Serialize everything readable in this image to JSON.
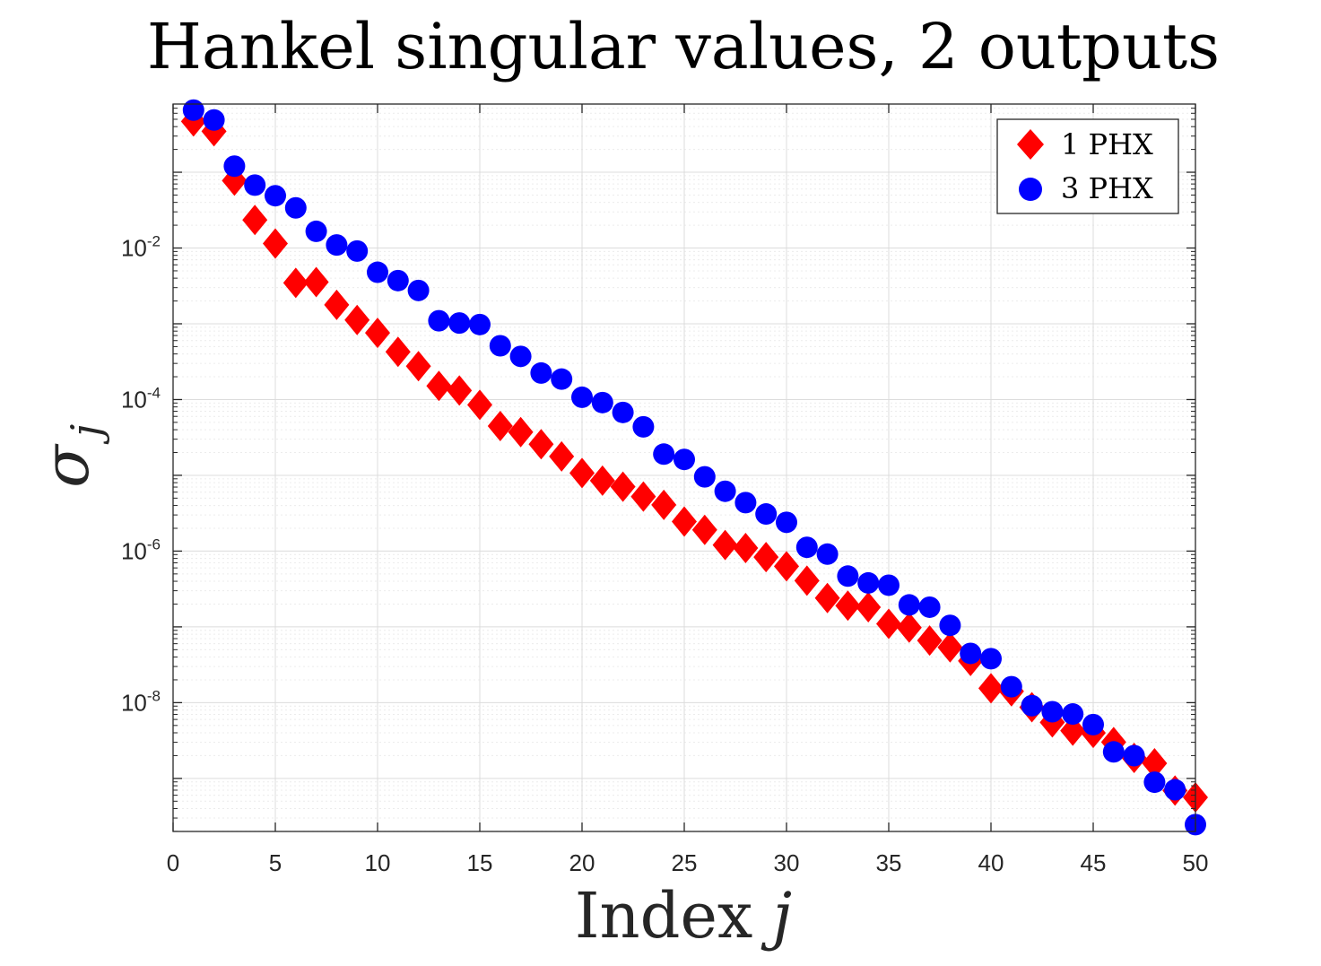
{
  "chart_data": {
    "type": "scatter",
    "title": "Hankel singular values, 2 outputs",
    "xlabel": "Index",
    "xlabel_var": "j",
    "ylabel_symbol": "σ",
    "ylabel_sub": "j",
    "xlim": [
      0,
      50
    ],
    "ylim_log10": [
      -9.7,
      -0.1
    ],
    "yscale": "log",
    "grid": true,
    "legend_position": "top-right",
    "xticks": [
      0,
      5,
      10,
      15,
      20,
      25,
      30,
      35,
      40,
      45,
      50
    ],
    "yticks": [
      {
        "base": "10",
        "exp": "-2",
        "log": -2
      },
      {
        "base": "10",
        "exp": "-4",
        "log": -4
      },
      {
        "base": "10",
        "exp": "-6",
        "log": -6
      },
      {
        "base": "10",
        "exp": "-8",
        "log": -8
      }
    ],
    "series": [
      {
        "name": "1 PHX",
        "marker": "diamond",
        "color": "#ff0000",
        "log10_values": [
          -0.33,
          -0.46,
          -1.11,
          -1.63,
          -1.94,
          -2.46,
          -2.45,
          -2.75,
          -2.95,
          -3.12,
          -3.37,
          -3.56,
          -3.82,
          -3.88,
          -4.07,
          -4.35,
          -4.43,
          -4.59,
          -4.75,
          -4.97,
          -5.07,
          -5.15,
          -5.28,
          -5.39,
          -5.61,
          -5.72,
          -5.92,
          -5.96,
          -6.08,
          -6.2,
          -6.39,
          -6.62,
          -6.72,
          -6.74,
          -6.96,
          -7.01,
          -7.18,
          -7.27,
          -7.45,
          -7.81,
          -7.85,
          -8.06,
          -8.26,
          -8.37,
          -8.4,
          -8.52,
          -8.73,
          -8.8,
          -9.16,
          -9.25
        ]
      },
      {
        "name": "3 PHX",
        "marker": "circle",
        "color": "#0000ff",
        "log10_values": [
          -0.18,
          -0.31,
          -0.92,
          -1.17,
          -1.31,
          -1.47,
          -1.78,
          -1.96,
          -2.04,
          -2.32,
          -2.43,
          -2.56,
          -2.96,
          -2.99,
          -3.01,
          -3.29,
          -3.43,
          -3.65,
          -3.73,
          -3.97,
          -4.04,
          -4.17,
          -4.36,
          -4.72,
          -4.79,
          -5.02,
          -5.21,
          -5.36,
          -5.51,
          -5.62,
          -5.95,
          -6.04,
          -6.33,
          -6.42,
          -6.45,
          -6.71,
          -6.74,
          -6.98,
          -7.35,
          -7.42,
          -7.79,
          -8.04,
          -8.12,
          -8.15,
          -8.29,
          -8.65,
          -8.7,
          -9.05,
          -9.15,
          -9.61
        ]
      }
    ]
  }
}
